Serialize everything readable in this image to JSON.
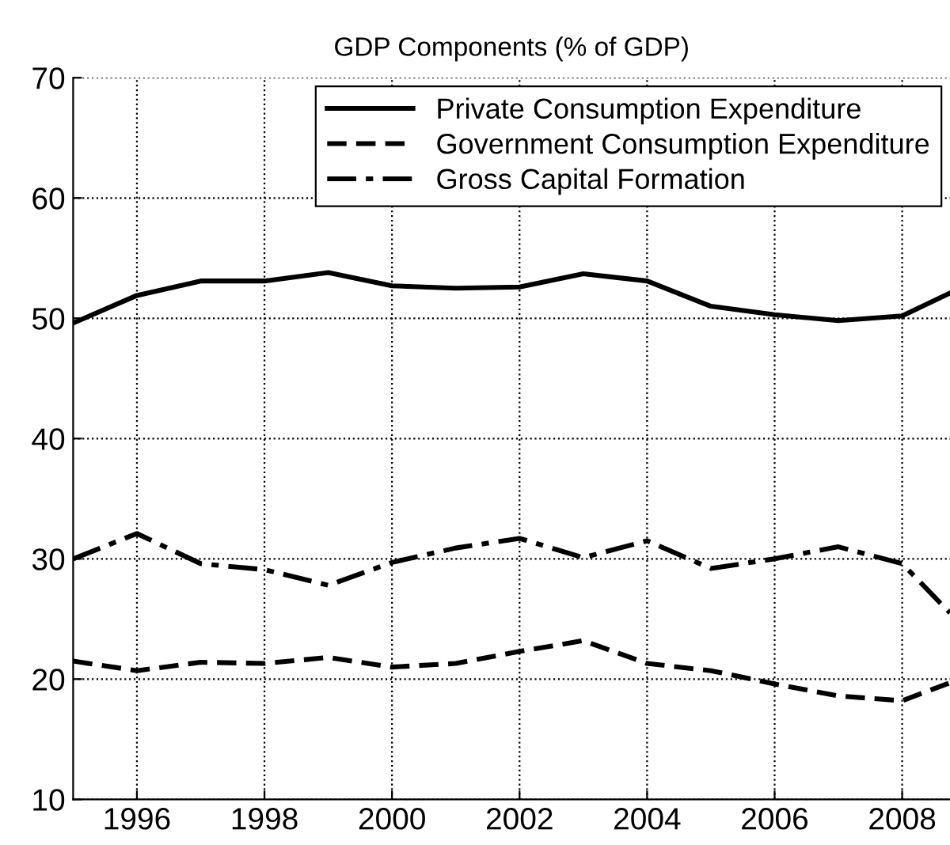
{
  "chart_data": {
    "type": "line",
    "title": "GDP Components (% of GDP)",
    "x": [
      1995,
      1996,
      1997,
      1998,
      1999,
      2000,
      2001,
      2002,
      2003,
      2004,
      2005,
      2006,
      2007,
      2008,
      2008.75
    ],
    "series": [
      {
        "name": "Private Consumption Expenditure",
        "color": "#000000",
        "line_style": "solid",
        "values": [
          49.6,
          51.9,
          53.1,
          53.1,
          53.8,
          52.7,
          52.5,
          52.6,
          53.7,
          53.1,
          51.0,
          50.3,
          49.8,
          50.2,
          52.1
        ]
      },
      {
        "name": "Government Consumption Expenditure",
        "color": "#000000",
        "line_style": "dashed",
        "values": [
          21.5,
          20.7,
          21.4,
          21.3,
          21.8,
          21.0,
          21.3,
          22.3,
          23.2,
          21.3,
          20.7,
          19.6,
          18.6,
          18.2,
          19.7
        ]
      },
      {
        "name": "Gross Capital Formation",
        "color": "#000000",
        "line_style": "dashdot",
        "values": [
          30.0,
          32.1,
          29.6,
          29.1,
          27.8,
          29.7,
          30.9,
          31.7,
          30.1,
          31.5,
          29.2,
          30.0,
          31.0,
          29.6,
          25.5
        ]
      }
    ],
    "xlim": [
      1995,
      2008.75
    ],
    "xticks": [
      1996,
      1998,
      2000,
      2002,
      2004,
      2006,
      2008
    ],
    "ylim": [
      10,
      70
    ],
    "yticks": [
      10,
      20,
      30,
      40,
      50,
      60,
      70
    ],
    "grid": true,
    "legend": "top right",
    "marker": "none"
  }
}
